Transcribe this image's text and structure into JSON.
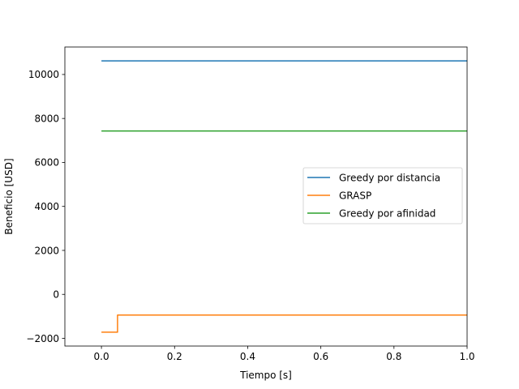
{
  "chart_data": {
    "type": "line",
    "title": "",
    "xlabel": "Tiempo [s]",
    "ylabel": "Beneficio [USD]",
    "xlim": [
      -0.1,
      1.0
    ],
    "ylim": [
      -2350,
      11250
    ],
    "xticks": [
      0.0,
      0.2,
      0.4,
      0.6,
      0.8,
      1.0
    ],
    "xtick_labels": [
      "0.0",
      "0.2",
      "0.4",
      "0.6",
      "0.8",
      "1.0"
    ],
    "yticks": [
      -2000,
      0,
      2000,
      4000,
      6000,
      8000,
      10000
    ],
    "ytick_labels": [
      "−2000",
      "0",
      "2000",
      "4000",
      "6000",
      "8000",
      "10000"
    ],
    "grid": false,
    "legend_position": "center-right",
    "series": [
      {
        "name": "Greedy por distancia",
        "color": "#1f77b4",
        "x": [
          0.0,
          1.0
        ],
        "y": [
          10620,
          10620
        ]
      },
      {
        "name": "GRASP",
        "color": "#ff7f0e",
        "x": [
          0.0,
          0.044,
          0.044,
          1.0
        ],
        "y": [
          -1720,
          -1720,
          -940,
          -940
        ]
      },
      {
        "name": "Greedy por afinidad",
        "color": "#2ca02c",
        "x": [
          0.0,
          1.0
        ],
        "y": [
          7430,
          7430
        ]
      }
    ]
  }
}
